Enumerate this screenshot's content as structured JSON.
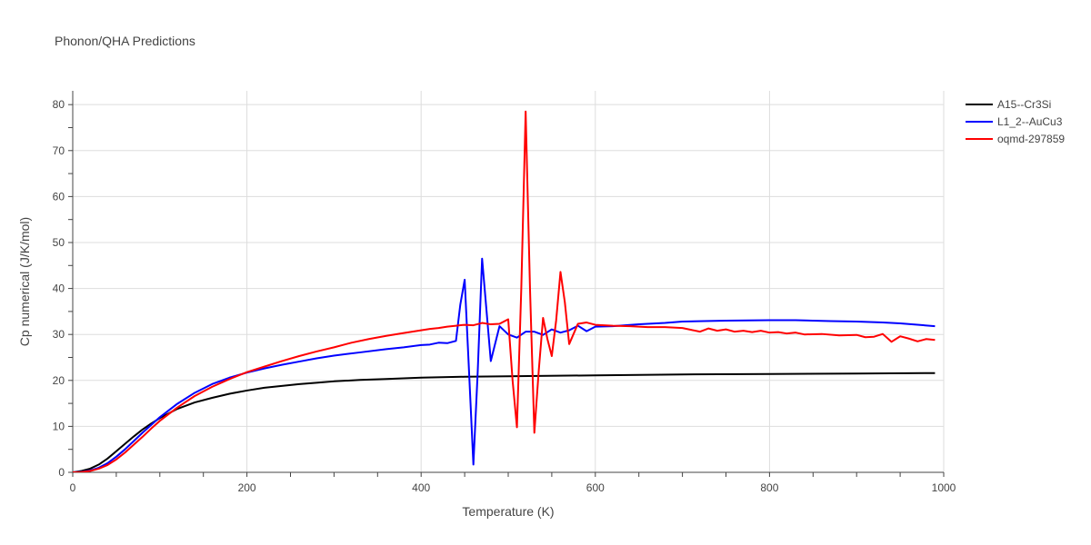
{
  "chart_data": {
    "type": "line",
    "title": "Phonon/QHA Predictions",
    "xlabel": "Temperature (K)",
    "ylabel": "Cp numerical (J/K/mol)",
    "xlim": [
      0,
      1000
    ],
    "ylim": [
      0,
      83
    ],
    "xticks": [
      0,
      200,
      400,
      600,
      800,
      1000
    ],
    "yticks": [
      0,
      10,
      20,
      30,
      40,
      50,
      60,
      70,
      80
    ],
    "grid": true,
    "legend_position": "top-right",
    "series": [
      {
        "name": "A15--Cr3Si",
        "color": "#000000",
        "x": [
          0,
          10,
          20,
          30,
          40,
          50,
          60,
          70,
          80,
          90,
          100,
          120,
          140,
          160,
          180,
          200,
          220,
          240,
          260,
          280,
          300,
          330,
          360,
          400,
          450,
          500,
          600,
          700,
          800,
          900,
          990
        ],
        "y": [
          0,
          0.3,
          0.8,
          1.7,
          3.0,
          4.6,
          6.2,
          7.8,
          9.3,
          10.6,
          11.8,
          13.8,
          15.2,
          16.2,
          17.1,
          17.8,
          18.4,
          18.8,
          19.2,
          19.5,
          19.8,
          20.1,
          20.3,
          20.6,
          20.8,
          20.9,
          21.1,
          21.3,
          21.4,
          21.5,
          21.6
        ]
      },
      {
        "name": "L1_2--AuCu3",
        "color": "#0000ff",
        "x": [
          0,
          10,
          20,
          30,
          40,
          50,
          60,
          70,
          80,
          90,
          100,
          120,
          140,
          160,
          180,
          200,
          220,
          240,
          260,
          280,
          300,
          330,
          360,
          380,
          400,
          410,
          420,
          430,
          440,
          445,
          450,
          455,
          460,
          465,
          470,
          480,
          490,
          500,
          510,
          520,
          530,
          540,
          550,
          560,
          570,
          580,
          590,
          600,
          620,
          650,
          680,
          700,
          750,
          800,
          830,
          870,
          900,
          930,
          950,
          990
        ],
        "y": [
          0,
          0.1,
          0.4,
          1.0,
          2.0,
          3.4,
          5.0,
          6.8,
          8.6,
          10.3,
          12.0,
          14.9,
          17.3,
          19.2,
          20.6,
          21.7,
          22.6,
          23.4,
          24.1,
          24.8,
          25.4,
          26.1,
          26.8,
          27.2,
          27.7,
          27.8,
          28.2,
          28.1,
          28.6,
          36.5,
          41.9,
          22.0,
          1.7,
          22.0,
          46.5,
          24.2,
          31.8,
          30.0,
          29.3,
          30.6,
          30.6,
          29.9,
          31.1,
          30.4,
          30.9,
          31.9,
          30.7,
          31.7,
          31.8,
          32.2,
          32.5,
          32.8,
          33.0,
          33.1,
          33.1,
          32.9,
          32.8,
          32.6,
          32.4,
          31.8
        ]
      },
      {
        "name": "oqmd-297859",
        "color": "#ff0000",
        "x": [
          0,
          10,
          20,
          30,
          40,
          50,
          60,
          70,
          80,
          90,
          100,
          120,
          140,
          160,
          180,
          200,
          220,
          240,
          260,
          280,
          300,
          320,
          340,
          360,
          380,
          400,
          410,
          420,
          430,
          440,
          450,
          460,
          470,
          480,
          490,
          500,
          505,
          510,
          515,
          520,
          525,
          530,
          535,
          540,
          545,
          550,
          555,
          560,
          565,
          570,
          580,
          590,
          600,
          620,
          640,
          660,
          680,
          700,
          710,
          720,
          730,
          740,
          750,
          760,
          770,
          780,
          790,
          800,
          810,
          820,
          830,
          840,
          860,
          880,
          900,
          910,
          920,
          930,
          940,
          950,
          960,
          970,
          980,
          990
        ],
        "y": [
          0,
          0.05,
          0.3,
          0.8,
          1.6,
          2.8,
          4.3,
          6.0,
          7.7,
          9.5,
          11.2,
          14.1,
          16.6,
          18.6,
          20.3,
          21.8,
          23.0,
          24.2,
          25.3,
          26.3,
          27.2,
          28.2,
          29.0,
          29.7,
          30.3,
          30.9,
          31.2,
          31.4,
          31.7,
          31.9,
          32.1,
          32.0,
          32.5,
          32.2,
          32.3,
          33.3,
          20.0,
          9.8,
          40.0,
          78.5,
          40.0,
          8.6,
          22.0,
          33.6,
          29.0,
          25.3,
          33.0,
          43.6,
          37.0,
          27.9,
          32.3,
          32.6,
          32.1,
          31.9,
          31.8,
          31.6,
          31.6,
          31.4,
          31.0,
          30.6,
          31.3,
          30.8,
          31.1,
          30.6,
          30.8,
          30.5,
          30.8,
          30.4,
          30.5,
          30.2,
          30.4,
          30.0,
          30.1,
          29.8,
          29.9,
          29.4,
          29.5,
          30.1,
          28.4,
          29.6,
          29.1,
          28.5,
          29.0,
          28.8
        ]
      }
    ]
  }
}
